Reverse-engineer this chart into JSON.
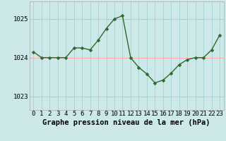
{
  "x": [
    0,
    1,
    2,
    3,
    4,
    5,
    6,
    7,
    8,
    9,
    10,
    11,
    12,
    13,
    14,
    15,
    16,
    17,
    18,
    19,
    20,
    21,
    22,
    23
  ],
  "y": [
    1024.15,
    1024.0,
    1024.0,
    1024.0,
    1024.0,
    1024.25,
    1024.25,
    1024.2,
    1024.45,
    1024.75,
    1025.0,
    1025.08,
    1024.0,
    1023.75,
    1023.58,
    1023.35,
    1023.42,
    1023.6,
    1023.82,
    1023.95,
    1024.0,
    1024.0,
    1024.2,
    1024.58
  ],
  "line_color": "#2d6a2d",
  "marker": "D",
  "markersize": 2.5,
  "linewidth": 1.0,
  "bg_color": "#cce8e8",
  "plot_bg_color": "#cce8e8",
  "hgrid_color": "#ffaaaa",
  "vgrid_color": "#aad4d4",
  "xlabel": "Graphe pression niveau de la mer (hPa)",
  "xlabel_fontsize": 7.5,
  "xlabel_fontweight": "bold",
  "tick_fontsize": 6.5,
  "yticks": [
    1023,
    1024,
    1025
  ],
  "ylim": [
    1022.65,
    1025.45
  ],
  "xlim": [
    -0.5,
    23.5
  ],
  "xticks": [
    0,
    1,
    2,
    3,
    4,
    5,
    6,
    7,
    8,
    9,
    10,
    11,
    12,
    13,
    14,
    15,
    16,
    17,
    18,
    19,
    20,
    21,
    22,
    23
  ]
}
